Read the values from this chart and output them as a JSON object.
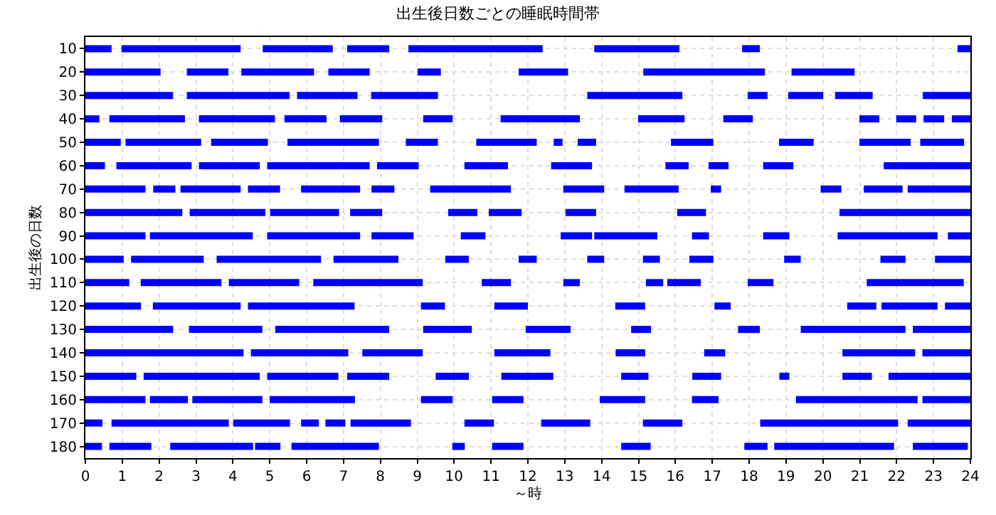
{
  "chart_data": {
    "type": "line",
    "title": "出生後日数ごとの睡眠時間帯",
    "xlabel": "～時",
    "ylabel": "出生後の日数",
    "xlim": [
      0,
      24
    ],
    "xticks": [
      0,
      1,
      2,
      3,
      4,
      5,
      6,
      7,
      8,
      9,
      10,
      11,
      12,
      13,
      14,
      15,
      16,
      17,
      18,
      19,
      20,
      21,
      22,
      23,
      24
    ],
    "ylim": [
      185,
      5
    ],
    "yticks": [
      10,
      20,
      30,
      40,
      50,
      60,
      70,
      80,
      90,
      100,
      110,
      120,
      130,
      140,
      150,
      160,
      170,
      180
    ],
    "grid": true,
    "line_style": "solid",
    "series": [
      {
        "color": "#0000ff",
        "x": [
          0,
          0.71,
          null,
          0.98,
          4.21,
          null,
          4.81,
          6.71,
          null,
          7.1,
          8.24,
          null,
          8.76,
          12.4,
          null,
          13.8,
          16.11,
          null,
          17.81,
          18.29,
          null,
          23.65,
          24
        ],
        "values": [
          10,
          10,
          null,
          10,
          10,
          null,
          10,
          10,
          null,
          10,
          10,
          null,
          10,
          10,
          null,
          10,
          10,
          null,
          10,
          10,
          null,
          10,
          10
        ]
      },
      {
        "color": "#0000ff",
        "x": [
          0,
          2.04,
          null,
          2.75,
          3.88,
          null,
          4.23,
          6.2,
          null,
          6.59,
          7.71,
          null,
          9.01,
          9.64,
          null,
          11.75,
          13.09,
          null,
          15.13,
          18.43,
          null,
          19.15,
          20.86
        ],
        "values": [
          20,
          20,
          null,
          20,
          20,
          null,
          20,
          20,
          null,
          20,
          20,
          null,
          20,
          20,
          null,
          20,
          20,
          null,
          20,
          20,
          null,
          20,
          20
        ]
      },
      {
        "color": "#0000ff",
        "x": [
          0,
          2.38,
          null,
          2.75,
          5.54,
          null,
          5.74,
          7.38,
          null,
          7.75,
          9.56,
          null,
          13.61,
          16.19,
          null,
          17.96,
          18.5,
          null,
          19.06,
          20.01,
          null,
          20.33,
          21.35,
          null,
          22.71,
          24
        ],
        "values": [
          30,
          30,
          null,
          30,
          30,
          null,
          30,
          30,
          null,
          30,
          30,
          null,
          30,
          30,
          null,
          30,
          30,
          null,
          30,
          30,
          null,
          30,
          30,
          null,
          30,
          30
        ]
      },
      {
        "color": "#0000ff",
        "x": [
          0,
          0.38,
          null,
          0.65,
          2.7,
          null,
          3.08,
          5.14,
          null,
          5.4,
          6.54,
          null,
          6.9,
          8.05,
          null,
          9.16,
          9.96,
          null,
          11.26,
          13.41,
          null,
          14.99,
          16.25,
          null,
          17.3,
          18.1,
          null,
          20.99,
          21.53,
          null,
          21.99,
          22.53,
          null,
          22.73,
          23.29,
          null,
          23.5,
          24
        ],
        "values": [
          40,
          40,
          null,
          40,
          40,
          null,
          40,
          40,
          null,
          40,
          40,
          null,
          40,
          40,
          null,
          40,
          40,
          null,
          40,
          40,
          null,
          40,
          40,
          null,
          40,
          40,
          null,
          40,
          40,
          null,
          40,
          40,
          null,
          40,
          40,
          null,
          40,
          40
        ]
      },
      {
        "color": "#0000ff",
        "x": [
          0,
          0.96,
          null,
          1.09,
          3.14,
          null,
          3.41,
          4.95,
          null,
          5.48,
          7.96,
          null,
          8.69,
          9.56,
          null,
          10.6,
          12.24,
          null,
          12.7,
          12.94,
          null,
          13.35,
          13.85,
          null,
          15.88,
          17.03,
          null,
          18.81,
          19.75,
          null,
          20.99,
          22.38,
          null,
          22.64,
          23.83
        ],
        "values": [
          50,
          50,
          null,
          50,
          50,
          null,
          50,
          50,
          null,
          50,
          50,
          null,
          50,
          50,
          null,
          50,
          50,
          null,
          50,
          50,
          null,
          50,
          50,
          null,
          50,
          50,
          null,
          50,
          50,
          null,
          50,
          50,
          null,
          50,
          50
        ]
      },
      {
        "color": "#0000ff",
        "x": [
          0,
          0.53,
          null,
          0.84,
          2.88,
          null,
          3.08,
          4.73,
          null,
          4.93,
          7.71,
          null,
          7.91,
          9.04,
          null,
          10.28,
          11.46,
          null,
          12.63,
          13.74,
          null,
          15.73,
          16.36,
          null,
          16.9,
          17.44,
          null,
          18.38,
          19.2,
          null,
          21.65,
          24
        ],
        "values": [
          60,
          60,
          null,
          60,
          60,
          null,
          60,
          60,
          null,
          60,
          60,
          null,
          60,
          60,
          null,
          60,
          60,
          null,
          60,
          60,
          null,
          60,
          60,
          null,
          60,
          60,
          null,
          60,
          60,
          null,
          60,
          60
        ]
      },
      {
        "color": "#0000ff",
        "x": [
          0,
          1.63,
          null,
          1.84,
          2.44,
          null,
          2.58,
          4.21,
          null,
          4.41,
          5.28,
          null,
          5.85,
          7.45,
          null,
          7.76,
          8.38,
          null,
          9.35,
          11.54,
          null,
          12.96,
          14.07,
          null,
          14.62,
          16.09,
          null,
          16.96,
          17.24,
          null,
          19.94,
          20.5,
          null,
          21.11,
          22.16,
          null,
          22.3,
          24
        ],
        "values": [
          70,
          70,
          null,
          70,
          70,
          null,
          70,
          70,
          null,
          70,
          70,
          null,
          70,
          70,
          null,
          70,
          70,
          null,
          70,
          70,
          null,
          70,
          70,
          null,
          70,
          70,
          null,
          70,
          70,
          null,
          70,
          70,
          null,
          70,
          70,
          null,
          70,
          70
        ]
      },
      {
        "color": "#0000ff",
        "x": [
          0,
          2.63,
          null,
          2.83,
          4.88,
          null,
          5.01,
          6.88,
          null,
          7.18,
          8.05,
          null,
          9.84,
          10.63,
          null,
          10.94,
          11.83,
          null,
          13.02,
          13.85,
          null,
          16.05,
          16.83,
          null,
          20.45,
          24
        ],
        "values": [
          80,
          80,
          null,
          80,
          80,
          null,
          80,
          80,
          null,
          80,
          80,
          null,
          80,
          80,
          null,
          80,
          80,
          null,
          80,
          80,
          null,
          80,
          80,
          null,
          80,
          80
        ]
      },
      {
        "color": "#0000ff",
        "x": [
          0,
          1.63,
          null,
          1.75,
          4.54,
          null,
          4.93,
          7.45,
          null,
          7.76,
          8.9,
          null,
          10.18,
          10.85,
          null,
          12.89,
          13.74,
          null,
          13.8,
          15.51,
          null,
          16.45,
          16.91,
          null,
          18.38,
          19.09,
          null,
          20.4,
          23.11,
          null,
          23.39,
          24
        ],
        "values": [
          90,
          90,
          null,
          90,
          90,
          null,
          90,
          90,
          null,
          90,
          90,
          null,
          90,
          90,
          null,
          90,
          90,
          null,
          90,
          90,
          null,
          90,
          90,
          null,
          90,
          90,
          null,
          90,
          90,
          null,
          90,
          90
        ]
      },
      {
        "color": "#0000ff",
        "x": [
          0,
          1.04,
          null,
          1.24,
          3.21,
          null,
          3.56,
          6.39,
          null,
          6.73,
          8.49,
          null,
          9.76,
          10.4,
          null,
          11.75,
          12.24,
          null,
          13.61,
          14.07,
          null,
          15.12,
          15.58,
          null,
          16.38,
          17.03,
          null,
          18.95,
          19.4,
          null,
          21.56,
          22.24,
          null,
          23.04,
          24
        ],
        "values": [
          100,
          100,
          null,
          100,
          100,
          null,
          100,
          100,
          null,
          100,
          100,
          null,
          100,
          100,
          null,
          100,
          100,
          null,
          100,
          100,
          null,
          100,
          100,
          null,
          100,
          100,
          null,
          100,
          100,
          null,
          100,
          100,
          null,
          100,
          100
        ]
      },
      {
        "color": "#0000ff",
        "x": [
          0,
          1.19,
          null,
          1.5,
          3.69,
          null,
          3.89,
          5.8,
          null,
          6.18,
          9.15,
          null,
          10.75,
          11.54,
          null,
          12.96,
          13.41,
          null,
          15.2,
          15.67,
          null,
          15.78,
          16.69,
          null,
          17.96,
          18.66,
          null,
          21.19,
          23.82
        ],
        "values": [
          110,
          110,
          null,
          110,
          110,
          null,
          110,
          110,
          null,
          110,
          110,
          null,
          110,
          110,
          null,
          110,
          110,
          null,
          110,
          110,
          null,
          110,
          110,
          null,
          110,
          110,
          null,
          110,
          110
        ]
      },
      {
        "color": "#0000ff",
        "x": [
          0,
          1.51,
          null,
          1.83,
          4.21,
          null,
          4.41,
          7.3,
          null,
          9.1,
          9.75,
          null,
          11.09,
          12.0,
          null,
          14.37,
          15.18,
          null,
          17.06,
          17.5,
          null,
          20.66,
          21.45,
          null,
          21.59,
          23.11,
          null,
          23.31,
          24
        ],
        "values": [
          120,
          120,
          null,
          120,
          120,
          null,
          120,
          120,
          null,
          120,
          120,
          null,
          120,
          120,
          null,
          120,
          120,
          null,
          120,
          120,
          null,
          120,
          120,
          null,
          120,
          120,
          null,
          120,
          120
        ]
      },
      {
        "color": "#0000ff",
        "x": [
          0,
          2.38,
          null,
          2.81,
          4.8,
          null,
          5.15,
          8.24,
          null,
          9.16,
          10.48,
          null,
          11.94,
          13.16,
          null,
          14.8,
          15.34,
          null,
          17.7,
          18.29,
          null,
          19.4,
          22.24,
          null,
          22.44,
          24
        ],
        "values": [
          130,
          130,
          null,
          130,
          130,
          null,
          130,
          130,
          null,
          130,
          130,
          null,
          130,
          130,
          null,
          130,
          130,
          null,
          130,
          130,
          null,
          130,
          130,
          null,
          130,
          130
        ]
      },
      {
        "color": "#0000ff",
        "x": [
          0,
          4.29,
          null,
          4.49,
          7.13,
          null,
          7.51,
          9.15,
          null,
          11.09,
          12.61,
          null,
          14.38,
          15.18,
          null,
          16.78,
          17.35,
          null,
          20.53,
          22.5,
          null,
          22.7,
          24
        ],
        "values": [
          140,
          140,
          null,
          140,
          140,
          null,
          140,
          140,
          null,
          140,
          140,
          null,
          140,
          140,
          null,
          140,
          140,
          null,
          140,
          140,
          null,
          140,
          140
        ]
      },
      {
        "color": "#0000ff",
        "x": [
          0,
          1.38,
          null,
          1.58,
          4.73,
          null,
          4.93,
          6.86,
          null,
          7.1,
          8.24,
          null,
          9.5,
          10.4,
          null,
          11.28,
          12.69,
          null,
          14.53,
          15.27,
          null,
          16.46,
          17.24,
          null,
          18.82,
          19.09,
          null,
          20.53,
          21.33,
          null,
          21.78,
          24
        ],
        "values": [
          150,
          150,
          null,
          150,
          150,
          null,
          150,
          150,
          null,
          150,
          150,
          null,
          150,
          150,
          null,
          150,
          150,
          null,
          150,
          150,
          null,
          150,
          150,
          null,
          150,
          150,
          null,
          150,
          150,
          null,
          150,
          150
        ]
      },
      {
        "color": "#0000ff",
        "x": [
          0,
          1.63,
          null,
          1.75,
          2.78,
          null,
          2.9,
          4.8,
          null,
          5.0,
          7.31,
          null,
          9.1,
          9.96,
          null,
          11.03,
          11.88,
          null,
          13.95,
          15.18,
          null,
          16.45,
          17.17,
          null,
          19.27,
          22.57,
          null,
          22.7,
          24
        ],
        "values": [
          160,
          160,
          null,
          160,
          160,
          null,
          160,
          160,
          null,
          160,
          160,
          null,
          160,
          160,
          null,
          160,
          160,
          null,
          160,
          160,
          null,
          160,
          160,
          null,
          160,
          160,
          null,
          160,
          160
        ]
      },
      {
        "color": "#0000ff",
        "x": [
          0,
          0.46,
          null,
          0.71,
          3.89,
          null,
          4.01,
          5.55,
          null,
          5.85,
          6.33,
          null,
          6.51,
          7.05,
          null,
          7.19,
          8.83,
          null,
          10.28,
          11.08,
          null,
          12.36,
          13.69,
          null,
          15.12,
          16.19,
          null,
          18.3,
          22.04,
          null,
          22.3,
          24
        ],
        "values": [
          170,
          170,
          null,
          170,
          170,
          null,
          170,
          170,
          null,
          170,
          170,
          null,
          170,
          170,
          null,
          170,
          170,
          null,
          170,
          170,
          null,
          170,
          170,
          null,
          170,
          170,
          null,
          170,
          170,
          null,
          170,
          170
        ]
      },
      {
        "color": "#0000ff",
        "x": [
          0,
          0.45,
          null,
          0.65,
          1.79,
          null,
          2.3,
          4.55,
          null,
          4.6,
          5.29,
          null,
          5.59,
          7.96,
          null,
          9.95,
          10.29,
          null,
          11.03,
          11.88,
          null,
          14.53,
          15.33,
          null,
          17.87,
          18.5,
          null,
          18.68,
          21.93,
          null,
          22.44,
          23.93
        ],
        "values": [
          180,
          180,
          null,
          180,
          180,
          null,
          180,
          180,
          null,
          180,
          180,
          null,
          180,
          180,
          null,
          180,
          180,
          null,
          180,
          180,
          null,
          180,
          180,
          null,
          180,
          180,
          null,
          180,
          180,
          null,
          180,
          180
        ]
      }
    ]
  }
}
